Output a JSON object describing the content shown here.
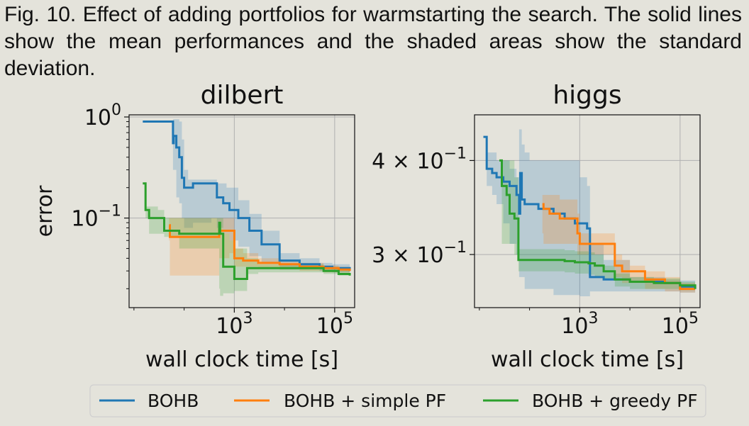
{
  "caption": "Fig. 10. Effect of adding portfolios for warmstarting the search. The solid lines show the mean performances and the shaded areas show the standard deviation.",
  "colors": {
    "BOHB": "#1f77b4",
    "BOHB + simple PF": "#ff7f0e",
    "BOHB + greedy PF": "#2ca02c"
  },
  "legend": [
    "BOHB",
    "BOHB + simple PF",
    "BOHB + greedy PF"
  ],
  "chart_data": [
    {
      "type": "line",
      "title": "dilbert",
      "xlabel": "wall clock time [s]",
      "ylabel": "error",
      "xscale": "log",
      "yscale": "log",
      "xlim": [
        8,
        250000
      ],
      "ylim": [
        0.013,
        1.05
      ],
      "xticks": [
        1000,
        100000
      ],
      "xtick_labels": [
        "10^3",
        "10^5"
      ],
      "yticks": [
        1,
        0.1
      ],
      "ytick_labels": [
        "10^0",
        "10^-1"
      ],
      "grid": true,
      "series": [
        {
          "name": "BOHB",
          "x": [
            15,
            45,
            60,
            62,
            70,
            75,
            80,
            90,
            100,
            120,
            150,
            180,
            350,
            450,
            600,
            700,
            800,
            1200,
            2000,
            3500,
            8000,
            20000,
            50000,
            90000,
            200000
          ],
          "y": [
            0.9,
            0.9,
            0.55,
            0.65,
            0.5,
            0.5,
            0.4,
            0.25,
            0.2,
            0.2,
            0.22,
            0.22,
            0.22,
            0.16,
            0.14,
            0.14,
            0.12,
            0.1,
            0.075,
            0.055,
            0.038,
            0.035,
            0.033,
            0.032,
            0.03
          ],
          "band_lo": [
            0.9,
            0.9,
            0.3,
            0.3,
            0.16,
            0.16,
            0.14,
            0.1,
            0.08,
            0.08,
            0.09,
            0.09,
            0.1,
            0.08,
            0.07,
            0.07,
            0.06,
            0.052,
            0.042,
            0.036,
            0.031,
            0.031,
            0.03,
            0.029,
            0.028
          ],
          "band_hi": [
            0.9,
            0.9,
            0.95,
            0.95,
            0.95,
            0.95,
            0.9,
            0.6,
            0.3,
            0.24,
            0.24,
            0.24,
            0.24,
            0.22,
            0.22,
            0.2,
            0.2,
            0.15,
            0.11,
            0.075,
            0.045,
            0.04,
            0.036,
            0.035,
            0.033
          ]
        },
        {
          "name": "BOHB + simple PF",
          "x": [
            50,
            52,
            200,
            500,
            800,
            1000,
            1500,
            3000,
            8000,
            20000,
            60000,
            120000,
            200000
          ],
          "y": [
            0.085,
            0.065,
            0.065,
            0.075,
            0.075,
            0.04,
            0.038,
            0.036,
            0.035,
            0.033,
            0.032,
            0.031,
            0.03
          ],
          "band_lo": [
            0.06,
            0.027,
            0.027,
            0.04,
            0.045,
            0.033,
            0.033,
            0.032,
            0.031,
            0.03,
            0.029,
            0.029,
            0.028
          ],
          "band_hi": [
            0.1,
            0.1,
            0.1,
            0.1,
            0.1,
            0.05,
            0.045,
            0.04,
            0.038,
            0.036,
            0.034,
            0.033,
            0.032
          ]
        },
        {
          "name": "BOHB + greedy PF",
          "x": [
            15,
            17,
            20,
            30,
            40,
            80,
            300,
            500,
            520,
            600,
            800,
            1000,
            1800,
            3000,
            6000,
            20000,
            60000,
            120000,
            200000
          ],
          "y": [
            0.22,
            0.12,
            0.1,
            0.1,
            0.075,
            0.07,
            0.07,
            0.09,
            0.07,
            0.033,
            0.033,
            0.025,
            0.032,
            0.032,
            0.032,
            0.032,
            0.03,
            0.028,
            0.027
          ],
          "band_lo": [
            0.22,
            0.1,
            0.07,
            0.07,
            0.065,
            0.05,
            0.05,
            0.02,
            0.017,
            0.018,
            0.018,
            0.019,
            0.028,
            0.029,
            0.029,
            0.029,
            0.028,
            0.027,
            0.026
          ],
          "band_hi": [
            0.22,
            0.13,
            0.13,
            0.12,
            0.1,
            0.1,
            0.1,
            0.1,
            0.1,
            0.07,
            0.06,
            0.05,
            0.04,
            0.035,
            0.035,
            0.035,
            0.033,
            0.031,
            0.029
          ]
        }
      ]
    },
    {
      "type": "line",
      "title": "higgs",
      "xlabel": "wall clock time [s]",
      "ylabel": "",
      "xscale": "log",
      "yscale": "log",
      "xlim": [
        8,
        250000
      ],
      "ylim": [
        0.255,
        0.46
      ],
      "xticks": [
        1000,
        100000
      ],
      "xtick_labels": [
        "10^3",
        "10^5"
      ],
      "yticks": [
        0.4,
        0.3
      ],
      "ytick_labels": [
        "4 × 10^-1",
        "3 × 10^-1"
      ],
      "grid": true,
      "series": [
        {
          "name": "BOHB",
          "x": [
            12,
            14,
            18,
            22,
            30,
            40,
            55,
            62,
            65,
            70,
            80,
            100,
            150,
            200,
            300,
            500,
            800,
            1000,
            1400,
            1600,
            3000,
            10000,
            50000,
            100000,
            200000
          ],
          "y": [
            0.43,
            0.39,
            0.385,
            0.38,
            0.375,
            0.37,
            0.36,
            0.34,
            0.385,
            0.355,
            0.35,
            0.35,
            0.345,
            0.345,
            0.34,
            0.335,
            0.33,
            0.33,
            0.325,
            0.28,
            0.278,
            0.276,
            0.275,
            0.272,
            0.27
          ],
          "band_lo": [
            0.43,
            0.37,
            0.36,
            0.35,
            0.33,
            0.31,
            0.3,
            0.28,
            0.28,
            0.28,
            0.27,
            0.27,
            0.27,
            0.27,
            0.265,
            0.265,
            0.265,
            0.264,
            0.264,
            0.268,
            0.268,
            0.268,
            0.268,
            0.267,
            0.267
          ],
          "band_hi": [
            0.43,
            0.41,
            0.41,
            0.4,
            0.4,
            0.39,
            0.38,
            0.44,
            0.44,
            0.42,
            0.41,
            0.4,
            0.4,
            0.4,
            0.4,
            0.4,
            0.4,
            0.38,
            0.37,
            0.31,
            0.295,
            0.28,
            0.278,
            0.277,
            0.275
          ]
        },
        {
          "name": "BOHB + simple PF",
          "x": [
            180,
            190,
            250,
            400,
            600,
            900,
            1000,
            1200,
            3000,
            5000,
            7000,
            10000,
            20000,
            50000,
            100000,
            200000
          ],
          "y": [
            0.35,
            0.345,
            0.34,
            0.335,
            0.335,
            0.32,
            0.31,
            0.31,
            0.31,
            0.29,
            0.285,
            0.285,
            0.278,
            0.275,
            0.27,
            0.27
          ],
          "band_lo": [
            0.32,
            0.31,
            0.31,
            0.31,
            0.31,
            0.3,
            0.3,
            0.3,
            0.3,
            0.28,
            0.275,
            0.275,
            0.27,
            0.268,
            0.267,
            0.267
          ],
          "band_hi": [
            0.36,
            0.36,
            0.36,
            0.355,
            0.355,
            0.34,
            0.32,
            0.32,
            0.32,
            0.3,
            0.295,
            0.29,
            0.285,
            0.28,
            0.275,
            0.274
          ]
        },
        {
          "name": "BOHB + greedy PF",
          "x": [
            25,
            28,
            30,
            35,
            40,
            50,
            60,
            100,
            200,
            500,
            800,
            1500,
            2000,
            3000,
            5000,
            10000,
            30000,
            100000,
            200000
          ],
          "y": [
            0.4,
            0.37,
            0.37,
            0.36,
            0.34,
            0.335,
            0.295,
            0.295,
            0.295,
            0.294,
            0.293,
            0.292,
            0.29,
            0.285,
            0.278,
            0.276,
            0.275,
            0.273,
            0.27
          ],
          "band_lo": [
            0.4,
            0.31,
            0.31,
            0.31,
            0.31,
            0.3,
            0.285,
            0.285,
            0.285,
            0.284,
            0.283,
            0.282,
            0.28,
            0.278,
            0.272,
            0.27,
            0.27,
            0.269,
            0.268
          ],
          "band_hi": [
            0.4,
            0.4,
            0.4,
            0.4,
            0.4,
            0.38,
            0.305,
            0.305,
            0.305,
            0.304,
            0.303,
            0.302,
            0.3,
            0.29,
            0.283,
            0.28,
            0.279,
            0.276,
            0.273
          ]
        }
      ]
    }
  ]
}
